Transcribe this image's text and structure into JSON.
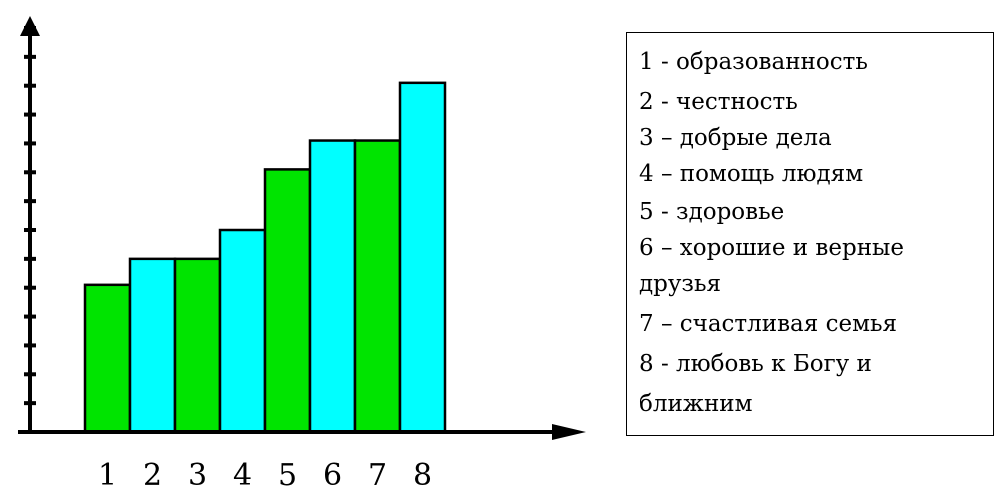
{
  "chart_data": {
    "type": "bar",
    "categories": [
      "1",
      "2",
      "3",
      "4",
      "5",
      "6",
      "7",
      "8"
    ],
    "values": [
      5.1,
      6.0,
      6.0,
      7.0,
      9.1,
      10.1,
      10.1,
      12.1
    ],
    "ylim": [
      0,
      14
    ],
    "y_tick_count": 14,
    "grid": false,
    "bar_colors": [
      "#00e400",
      "#00ffff",
      "#00e400",
      "#00ffff",
      "#00e400",
      "#00ffff",
      "#00e400",
      "#00ffff"
    ],
    "title": "",
    "xlabel": "",
    "ylabel": "",
    "legend_placement": "right"
  },
  "legend": {
    "lines": [
      "1 - образованность",
      "2 - честность",
      "3 – добрые дела",
      "4 – помощь людям",
      "5 - здоровье",
      "6 – хорошие и верные",
      "друзья",
      "7 – счастливая семья",
      "8 - любовь к Богу и",
      "ближним"
    ]
  }
}
